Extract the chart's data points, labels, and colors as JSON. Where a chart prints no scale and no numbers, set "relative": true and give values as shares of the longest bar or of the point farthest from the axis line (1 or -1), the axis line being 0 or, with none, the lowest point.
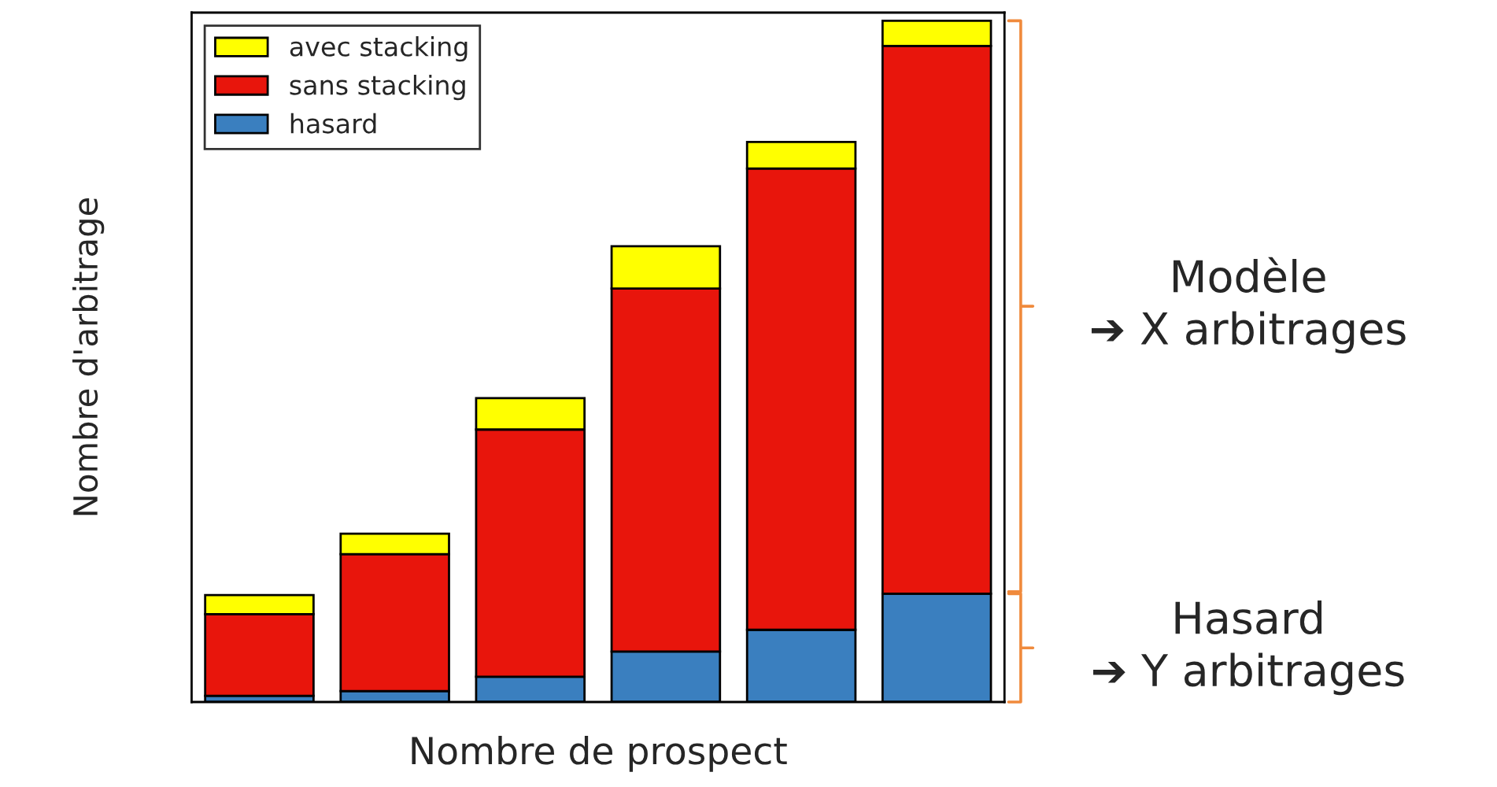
{
  "chart_data": {
    "type": "bar",
    "stacked": true,
    "relative": true,
    "xlabel": "Nombre de prospect",
    "ylabel": "Nombre d'arbitrage",
    "categories": [
      null,
      null,
      null,
      null,
      null,
      null
    ],
    "series": [
      {
        "name": "hasard",
        "color": "#3a7fbf",
        "values": [
          0.009,
          0.016,
          0.037,
          0.074,
          0.106,
          0.159
        ]
      },
      {
        "name": "sans stacking",
        "color": "#e8150c",
        "values": [
          0.12,
          0.201,
          0.363,
          0.533,
          0.677,
          0.804
        ]
      },
      {
        "name": "avec stacking",
        "color": "#ffff00",
        "values": [
          0.028,
          0.03,
          0.046,
          0.062,
          0.039,
          0.037
        ]
      }
    ],
    "legend": "top left",
    "grid": false,
    "annotations": [
      "Modèle\n➔ X arbitrages",
      "Hasard\n➔ Y arbitrages"
    ]
  }
}
